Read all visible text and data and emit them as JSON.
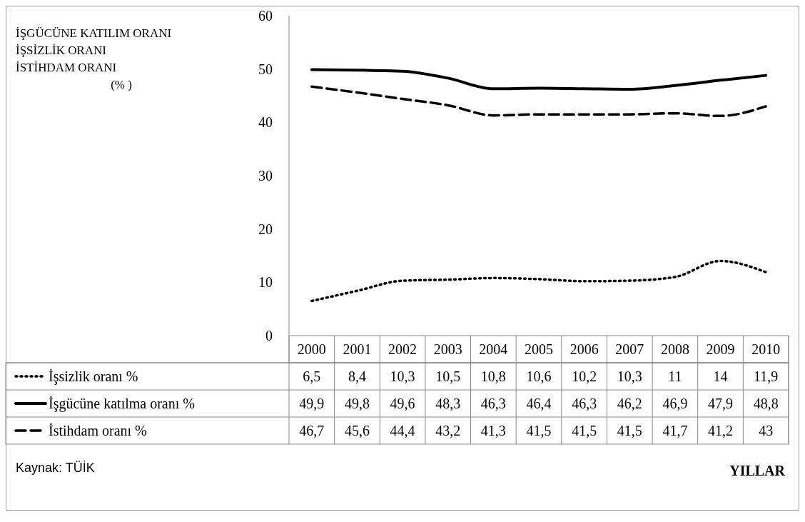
{
  "chart_data": {
    "type": "line",
    "annotations": [
      "İŞGÜCÜNE KATILIM ORANI\nİŞSİZLİK ORANI\nİSTİHDAM ORANI\n(% )",
      "Kaynak: TÜİK",
      "YILLAR"
    ],
    "categories": [
      "2000",
      "2001",
      "2002",
      "2003",
      "2004",
      "2005",
      "2006",
      "2007",
      "2008",
      "2009",
      "2010"
    ],
    "ylim": [
      0,
      60
    ],
    "yticks": [
      0,
      10,
      20,
      30,
      40,
      50,
      60
    ],
    "grid": false,
    "legend": "bottom left",
    "series": [
      {
        "name": "İşsizlik oranı %",
        "color": "#000000",
        "line_style": "dotted",
        "values": [
          6.5,
          8.4,
          10.3,
          10.5,
          10.8,
          10.6,
          10.2,
          10.3,
          11,
          14,
          11.9
        ],
        "value_labels": [
          "6,5",
          "8,4",
          "10,3",
          "10,5",
          "10,8",
          "10,6",
          "10,2",
          "10,3",
          "11",
          "14",
          "11,9"
        ]
      },
      {
        "name": "İşgücüne katılma oranı %",
        "color": "#000000",
        "line_style": "solid",
        "values": [
          49.9,
          49.8,
          49.6,
          48.3,
          46.3,
          46.4,
          46.3,
          46.2,
          46.9,
          47.9,
          48.8
        ],
        "value_labels": [
          "49,9",
          "49,8",
          "49,6",
          "48,3",
          "46,3",
          "46,4",
          "46,3",
          "46,2",
          "46,9",
          "47,9",
          "48,8"
        ]
      },
      {
        "name": "İstihdam oranı %",
        "color": "#000000",
        "line_style": "dashed",
        "values": [
          46.7,
          45.6,
          44.4,
          43.2,
          41.3,
          41.5,
          41.5,
          41.5,
          41.7,
          41.2,
          43
        ],
        "value_labels": [
          "46,7",
          "45,6",
          "44,4",
          "43,2",
          "41,3",
          "41,5",
          "41,5",
          "41,5",
          "41,7",
          "41,2",
          "43"
        ]
      }
    ]
  }
}
